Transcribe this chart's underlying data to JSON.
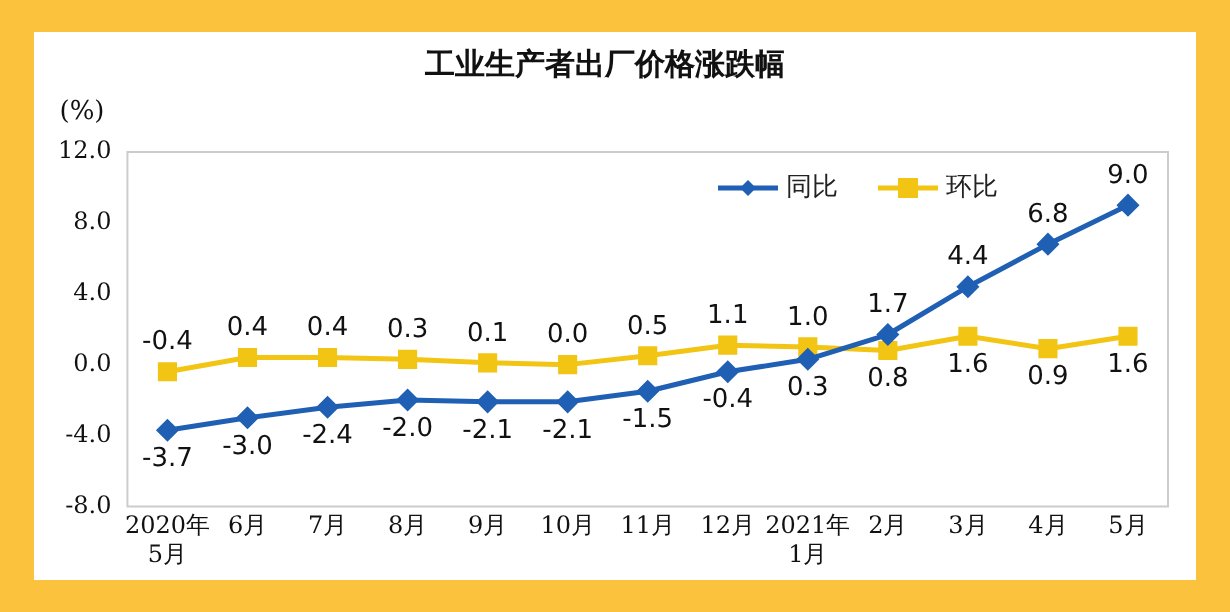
{
  "chart_data": {
    "type": "line",
    "title": "工业生产者出厂价格涨跌幅",
    "ylabel": "(%)",
    "categories": [
      "2020年\n5月",
      "6月",
      "7月",
      "8月",
      "9月",
      "10月",
      "11月",
      "12月",
      "2021年\n1月",
      "2月",
      "3月",
      "4月",
      "5月"
    ],
    "series": [
      {
        "name": "同比",
        "color": "#1f5fb4",
        "marker": "diamond",
        "values": [
          -3.7,
          -3,
          -2.4,
          -2,
          -2.1,
          -2.1,
          -1.5,
          -0.4,
          0.3,
          1.7,
          4.4,
          6.8,
          9
        ],
        "value_labels": [
          "-3.7",
          "-3.0",
          "-2.4",
          "-2.0",
          "-2.1",
          "-2.1",
          "-1.5",
          "-0.4",
          "0.3",
          "1.7",
          "4.4",
          "6.8",
          "9.0"
        ]
      },
      {
        "name": "环比",
        "color": "#f2c515",
        "marker": "square",
        "values": [
          -0.4,
          0.4,
          0.4,
          0.3,
          0.1,
          0,
          0.5,
          1.1,
          1,
          0.8,
          1.6,
          0.9,
          1.6
        ],
        "value_labels": [
          "-0.4",
          "0.4",
          "0.4",
          "0.3",
          "0.1",
          "0.0",
          "0.5",
          "1.1",
          "1.0",
          "0.8",
          "1.6",
          "0.9",
          "1.6"
        ]
      }
    ],
    "ylim": [
      -8,
      12
    ],
    "yticks": [
      {
        "value": -8,
        "label": "-8.0"
      },
      {
        "value": -4,
        "label": "-4.0"
      },
      {
        "value": 0,
        "label": "0.0"
      },
      {
        "value": 4,
        "label": "4.0"
      },
      {
        "value": 8,
        "label": "8.0"
      },
      {
        "value": 12,
        "label": "12.0"
      }
    ],
    "grid": false,
    "legend": "top right"
  }
}
